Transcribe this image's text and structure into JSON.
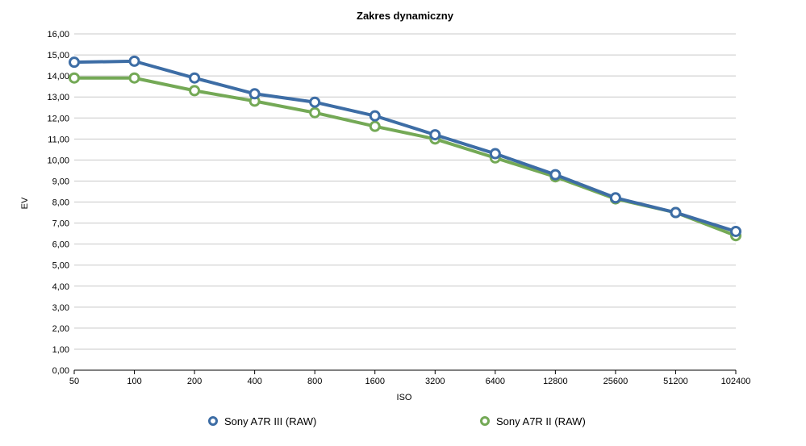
{
  "chart_data": {
    "type": "line",
    "title": "Zakres dynamiczny",
    "xlabel": "ISO",
    "ylabel": "EV",
    "categories": [
      "50",
      "100",
      "200",
      "400",
      "800",
      "1600",
      "3200",
      "6400",
      "12800",
      "25600",
      "51200",
      "102400"
    ],
    "ylim": [
      0,
      16
    ],
    "yticks": [
      "0,00",
      "1,00",
      "2,00",
      "3,00",
      "4,00",
      "5,00",
      "6,00",
      "7,00",
      "8,00",
      "9,00",
      "10,00",
      "11,00",
      "12,00",
      "13,00",
      "14,00",
      "15,00",
      "16,00"
    ],
    "grid": true,
    "legend_position": "bottom",
    "series": [
      {
        "name": "Sony A7R III (RAW)",
        "color": "#3d6da5",
        "values": [
          14.65,
          14.7,
          13.9,
          13.15,
          12.75,
          12.1,
          11.2,
          10.3,
          9.3,
          8.2,
          7.5,
          6.6
        ]
      },
      {
        "name": "Sony A7R II (RAW)",
        "color": "#74a956",
        "values": [
          13.9,
          13.9,
          13.3,
          12.8,
          12.25,
          11.6,
          11.0,
          10.1,
          9.2,
          8.15,
          7.5,
          6.4
        ]
      }
    ]
  }
}
